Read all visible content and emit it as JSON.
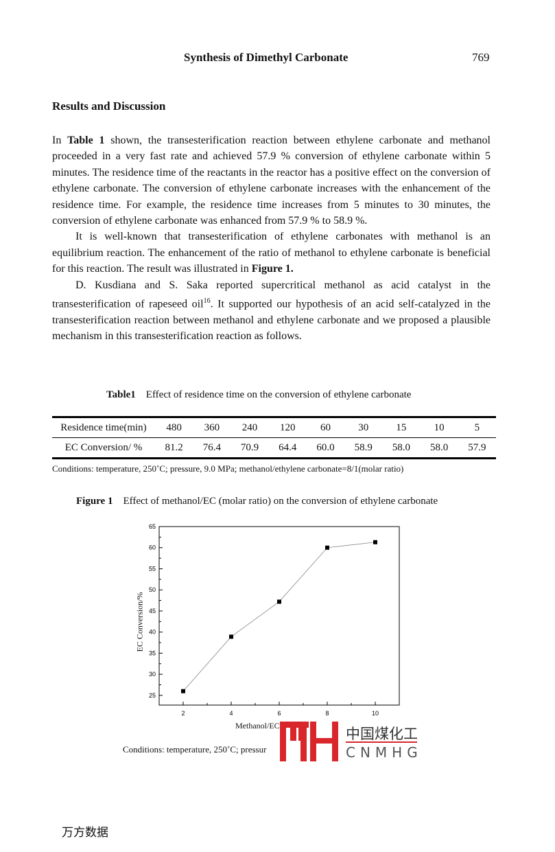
{
  "header": {
    "title": "Synthesis of Dimethyl Carbonate",
    "page": "769"
  },
  "section": "Results and Discussion",
  "paragraphs": [
    {
      "pre": "In ",
      "bold": "Table 1",
      "post": " shown, the transesterification reaction between ethylene carbonate and methanol proceeded in a very fast rate and achieved 57.9 % conversion of ethylene carbonate within 5 minutes.   The residence time of the reactants in the reactor has a positive effect on the conversion of ethylene carbonate.   The conversion of ethylene carbonate increases with the enhancement of the residence time.   For example, the residence time increases from 5 minutes to 30 minutes, the conversion of ethylene carbonate was enhanced from 57.9 % to 58.9 %."
    },
    {
      "pre": "It is well-known that transesterification of ethylene carbonates with methanol is an equilibrium reaction.   The enhancement of the ratio of methanol to ethylene carbonate is beneficial for this reaction.   The result was illustrated in ",
      "bold": "Figure 1.",
      "post": ""
    },
    {
      "pre": "D. Kusdiana and S. Saka reported supercritical methanol as acid catalyst in the transesterification of rapeseed oil",
      "sup": "16",
      "post": ".   It supported our hypothesis of an acid self-catalyzed in the transesterification reaction between methanol and ethylene carbonate and we proposed a plausible mechanism in this transesterification reaction as follows."
    }
  ],
  "table1": {
    "label": "Table1",
    "caption": "Effect of residence time on the conversion of ethylene carbonate",
    "rows": [
      [
        "Residence time(min)",
        "480",
        "360",
        "240",
        "120",
        "60",
        "30",
        "15",
        "10",
        "5"
      ],
      [
        "EC Conversion/ %",
        "81.2",
        "76.4",
        "70.9",
        "64.4",
        "60.0",
        "58.9",
        "58.0",
        "58.0",
        "57.9"
      ]
    ],
    "conditions": "Conditions: temperature, 250˚C; pressure, 9.0 MPa; methanol/ethylene carbonate=8/1(molar ratio)"
  },
  "figure1": {
    "label": "Figure 1",
    "caption": "Effect of methanol/EC (molar ratio) on the conversion of ethylene carbonate",
    "conditions": "Conditions: temperature, 250˚C; pressur"
  },
  "chart_data": {
    "type": "line",
    "x": [
      2,
      4,
      6,
      8,
      10
    ],
    "values": [
      26.0,
      38.9,
      47.2,
      60.0,
      61.3
    ],
    "xlabel": "Methanol/EC",
    "ylabel": "EC Conversion/%",
    "xlim": [
      1,
      11
    ],
    "ylim": [
      22.7,
      65
    ],
    "xticks": [
      2,
      4,
      6,
      8,
      10
    ],
    "yticks": [
      25,
      30,
      35,
      40,
      45,
      50,
      55,
      60,
      65
    ],
    "grid": false,
    "marker": "square",
    "line_color": "#888888"
  },
  "watermark": {
    "logo_text": "中国煤化工",
    "logo_sub": "CNMHG",
    "color": "#d9262b"
  },
  "footer_mark": "万方数据"
}
